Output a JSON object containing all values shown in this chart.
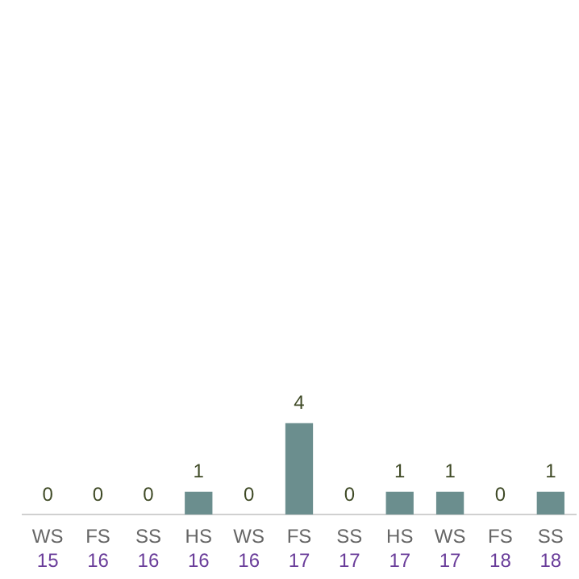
{
  "chart_data": {
    "type": "bar",
    "categories": [
      "WS 15",
      "FS 16",
      "SS 16",
      "HS 16",
      "WS 16",
      "FS 17",
      "SS 17",
      "HS 17",
      "WS 17",
      "FS 18",
      "SS 18"
    ],
    "values": [
      0,
      0,
      0,
      1,
      0,
      4,
      0,
      1,
      1,
      0,
      1
    ],
    "color": "#6b8e8e",
    "data_labels": true,
    "grid": false,
    "legend": false
  }
}
